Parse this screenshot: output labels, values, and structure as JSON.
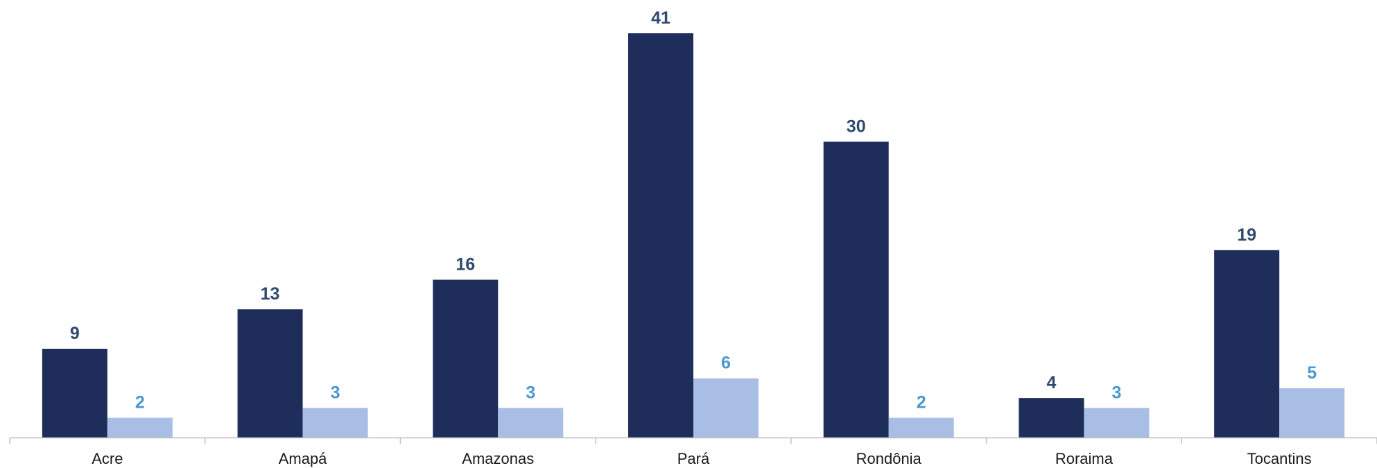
{
  "chart_data": {
    "type": "bar",
    "categories": [
      "Acre",
      "Amapá",
      "Amazonas",
      "Pará",
      "Rondônia",
      "Roraima",
      "Tocantins"
    ],
    "series": [
      {
        "values": [
          9,
          13,
          16,
          41,
          30,
          4,
          19
        ],
        "color": "#1e2d5a",
        "label_color": "#2f4a6e"
      },
      {
        "values": [
          2,
          3,
          3,
          6,
          2,
          3,
          5
        ],
        "color": "#a8bee4",
        "label_color": "#4a97d2"
      }
    ],
    "ylim": [
      0,
      41
    ],
    "grid": false,
    "legend": "none",
    "axis_color": "#bfbfbf"
  }
}
